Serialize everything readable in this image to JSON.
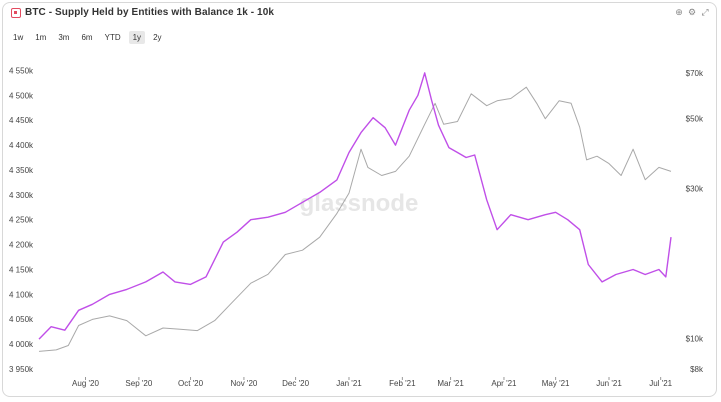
{
  "title": "BTC - Supply Held by Entities with Balance 1k - 10k",
  "tabs": [
    "1w",
    "1m",
    "3m",
    "6m",
    "YTD",
    "1y",
    "2y"
  ],
  "active_tab": "1y",
  "watermark": "glassnode",
  "header_icons": [
    "zoom-icon",
    "settings-icon",
    "expand-icon"
  ],
  "chart_data": {
    "type": "line",
    "x_labels": [
      "Aug '20",
      "Sep '20",
      "Oct '20",
      "Nov '20",
      "Dec '20",
      "Jan '21",
      "Feb '21",
      "Mar '21",
      "Apr '21",
      "May '21",
      "Jun '21",
      "Jul '21"
    ],
    "x_range": [
      "2020-07-05",
      "2021-07-07"
    ],
    "y_left": {
      "ticks": [
        "3 950k",
        "4 000k",
        "4 050k",
        "4 100k",
        "4 150k",
        "4 200k",
        "4 250k",
        "4 300k",
        "4 350k",
        "4 400k",
        "4 450k",
        "4 500k",
        "4 550k"
      ],
      "range": [
        3950,
        4575
      ]
    },
    "y_right": {
      "scale": "log",
      "ticks": [
        "$8k",
        "$10k",
        "$30k",
        "$50k",
        "$70k"
      ],
      "range": [
        8,
        78
      ]
    },
    "grid": false,
    "series": [
      {
        "color": "#c04fe8",
        "axis": "left",
        "points": [
          [
            "2020-07-05",
            4010
          ],
          [
            "2020-07-12",
            4035
          ],
          [
            "2020-07-20",
            4028
          ],
          [
            "2020-07-28",
            4068
          ],
          [
            "2020-08-05",
            4080
          ],
          [
            "2020-08-15",
            4100
          ],
          [
            "2020-08-25",
            4110
          ],
          [
            "2020-09-05",
            4125
          ],
          [
            "2020-09-15",
            4145
          ],
          [
            "2020-09-22",
            4125
          ],
          [
            "2020-10-01",
            4120
          ],
          [
            "2020-10-10",
            4135
          ],
          [
            "2020-10-20",
            4205
          ],
          [
            "2020-10-28",
            4225
          ],
          [
            "2020-11-05",
            4250
          ],
          [
            "2020-11-15",
            4255
          ],
          [
            "2020-11-25",
            4265
          ],
          [
            "2020-12-05",
            4285
          ],
          [
            "2020-12-15",
            4305
          ],
          [
            "2020-12-25",
            4330
          ],
          [
            "2021-01-01",
            4385
          ],
          [
            "2021-01-08",
            4425
          ],
          [
            "2021-01-15",
            4455
          ],
          [
            "2021-01-22",
            4435
          ],
          [
            "2021-01-28",
            4400
          ],
          [
            "2021-02-05",
            4470
          ],
          [
            "2021-02-10",
            4500
          ],
          [
            "2021-02-14",
            4545
          ],
          [
            "2021-02-18",
            4490
          ],
          [
            "2021-02-22",
            4440
          ],
          [
            "2021-02-28",
            4395
          ],
          [
            "2021-03-05",
            4385
          ],
          [
            "2021-03-10",
            4375
          ],
          [
            "2021-03-15",
            4380
          ],
          [
            "2021-03-22",
            4290
          ],
          [
            "2021-03-28",
            4230
          ],
          [
            "2021-04-05",
            4260
          ],
          [
            "2021-04-15",
            4250
          ],
          [
            "2021-04-25",
            4260
          ],
          [
            "2021-05-01",
            4265
          ],
          [
            "2021-05-08",
            4250
          ],
          [
            "2021-05-15",
            4230
          ],
          [
            "2021-05-20",
            4160
          ],
          [
            "2021-05-28",
            4125
          ],
          [
            "2021-06-05",
            4140
          ],
          [
            "2021-06-15",
            4150
          ],
          [
            "2021-06-22",
            4140
          ],
          [
            "2021-06-30",
            4150
          ],
          [
            "2021-07-04",
            4135
          ],
          [
            "2021-07-07",
            4215
          ]
        ]
      },
      {
        "color": "#a9a9a9",
        "axis": "right",
        "points": [
          [
            "2020-07-05",
            9.1
          ],
          [
            "2020-07-15",
            9.2
          ],
          [
            "2020-07-22",
            9.5
          ],
          [
            "2020-07-28",
            11.0
          ],
          [
            "2020-08-05",
            11.5
          ],
          [
            "2020-08-15",
            11.8
          ],
          [
            "2020-08-25",
            11.4
          ],
          [
            "2020-09-05",
            10.2
          ],
          [
            "2020-09-15",
            10.8
          ],
          [
            "2020-09-25",
            10.7
          ],
          [
            "2020-10-05",
            10.6
          ],
          [
            "2020-10-15",
            11.4
          ],
          [
            "2020-10-25",
            13.0
          ],
          [
            "2020-11-05",
            15.0
          ],
          [
            "2020-11-15",
            16.0
          ],
          [
            "2020-11-25",
            18.5
          ],
          [
            "2020-12-05",
            19.1
          ],
          [
            "2020-12-15",
            21.0
          ],
          [
            "2020-12-25",
            25.0
          ],
          [
            "2021-01-01",
            29.0
          ],
          [
            "2021-01-08",
            40.0
          ],
          [
            "2021-01-12",
            35.0
          ],
          [
            "2021-01-20",
            33.0
          ],
          [
            "2021-01-28",
            34.0
          ],
          [
            "2021-02-05",
            38.0
          ],
          [
            "2021-02-14",
            48.0
          ],
          [
            "2021-02-20",
            56.0
          ],
          [
            "2021-02-25",
            48.0
          ],
          [
            "2021-03-05",
            49.0
          ],
          [
            "2021-03-13",
            60.0
          ],
          [
            "2021-03-22",
            55.0
          ],
          [
            "2021-03-28",
            57.0
          ],
          [
            "2021-04-05",
            58.0
          ],
          [
            "2021-04-14",
            63.0
          ],
          [
            "2021-04-20",
            56.0
          ],
          [
            "2021-04-25",
            50.0
          ],
          [
            "2021-05-03",
            57.0
          ],
          [
            "2021-05-10",
            56.0
          ],
          [
            "2021-05-15",
            47.0
          ],
          [
            "2021-05-19",
            37.0
          ],
          [
            "2021-05-25",
            38.0
          ],
          [
            "2021-06-01",
            36.0
          ],
          [
            "2021-06-08",
            33.0
          ],
          [
            "2021-06-15",
            40.0
          ],
          [
            "2021-06-22",
            32.0
          ],
          [
            "2021-06-30",
            35.0
          ],
          [
            "2021-07-07",
            34.0
          ]
        ]
      }
    ]
  }
}
